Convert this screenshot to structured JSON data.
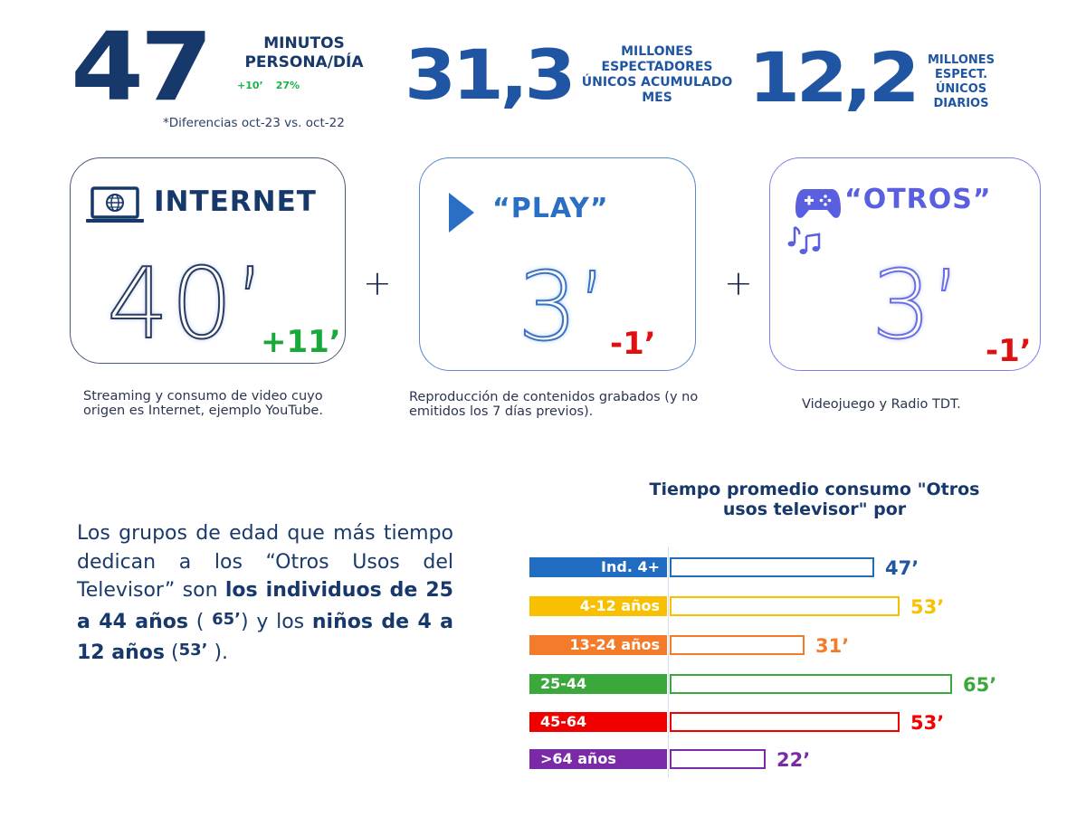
{
  "header": {
    "stat_minutes": {
      "value": "47",
      "label": "MINUTOS PERSONA/DÍA",
      "delta_minutes": "+10’",
      "delta_percent": "27%"
    },
    "note": "*Diferencias oct-23 vs. oct-22",
    "stat_monthly": {
      "value": "31,3",
      "label": "MILLONES ESPECTADORES ÚNICOS ACUMULADO MES"
    },
    "stat_daily": {
      "value": "12,2",
      "label": "MILLONES ESPECT. ÚNICOS DIARIOS"
    }
  },
  "cards": [
    {
      "title": "INTERNET",
      "icon": "laptop-globe-icon",
      "value": "40’",
      "delta": "+11’",
      "delta_color": "#19a83a",
      "description": "Streaming y consumo de video cuyo origen es Internet, ejemplo YouTube."
    },
    {
      "title": "“PLAY”",
      "icon": "play-triangle-icon",
      "value": "3’",
      "delta": "-1’",
      "delta_color": "#e01010",
      "description": "Reproducción de contenidos grabados (y no emitidos los 7 días previos)."
    },
    {
      "title": "“OTROS”",
      "icon": "gamepad-music-icon",
      "value": "3’",
      "delta": "-1’",
      "delta_color": "#e01010",
      "description": "Videojuego y Radio TDT."
    }
  ],
  "operators": [
    "+",
    "+"
  ],
  "paragraph": {
    "p1": "Los grupos de edad que más tiempo dedican a los “Otros Usos del Televisor”  son ",
    "b1": "los individuos de 25 a 44 años",
    "p2": " ( ",
    "v1": "65’",
    "p3": ") y los ",
    "b2": "niños de 4 a 12 años",
    "p4": " (",
    "v2": "53’",
    "p5": " )."
  },
  "chart_data": {
    "type": "bar",
    "orientation": "horizontal",
    "title": "Tiempo promedio consumo \"Otros usos televisor\" por",
    "categories": [
      "Ind. 4+",
      "4-12 años",
      "13-24 años",
      "25-44",
      "45-64",
      ">64 años"
    ],
    "values": [
      47,
      53,
      31,
      65,
      53,
      22
    ],
    "value_labels": [
      "47’",
      "53’",
      "31’",
      "65’",
      "53’",
      "22’"
    ],
    "unit": "minutos",
    "colors": [
      "#1f6cc0",
      "#f8c000",
      "#f37b2a",
      "#3aa83a",
      "#f20000",
      "#7a2aa6"
    ],
    "xlabel": "",
    "ylabel": "",
    "grid": false,
    "legend": "none"
  }
}
